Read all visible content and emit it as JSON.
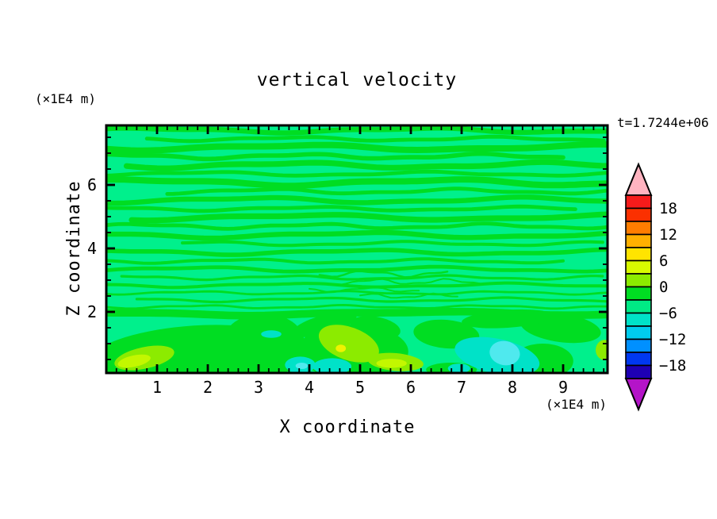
{
  "chart_data": {
    "type": "contour",
    "title": "vertical velocity",
    "time_label": "t=1.7244e+06",
    "xlabel": "X coordinate",
    "ylabel": "Z coordinate",
    "x_unit_label": "(×1E4 m)",
    "y_unit_label": "(×1E4 m)",
    "xlim": [
      0,
      9.88
    ],
    "ylim": [
      0,
      7.88
    ],
    "x_major_ticks": [
      1,
      2,
      3,
      4,
      5,
      6,
      7,
      8,
      9
    ],
    "x_minor_step": 0.2,
    "y_major_ticks": [
      2,
      4,
      6
    ],
    "y_minor_step": 0.5,
    "grid": false,
    "legend_position": "right-colorbar",
    "colorbar": {
      "labels": [
        "18",
        "12",
        "6",
        "0",
        "−6",
        "−12",
        "−18"
      ],
      "label_values": [
        18,
        12,
        6,
        0,
        -6,
        -12,
        -18
      ],
      "range": [
        -21,
        21
      ],
      "segment_step": 3,
      "colors_top_to_bottom": [
        "#f51b1b",
        "#fb3000",
        "#ff7d00",
        "#ffb000",
        "#ffe400",
        "#d8fa00",
        "#8ceb00",
        "#00dd22",
        "#00ea85",
        "#00e2c8",
        "#00ccee",
        "#0090ff",
        "#0038f0",
        "#1e00b4"
      ],
      "over_color": "#ffb3c0",
      "under_color": "#b414c8"
    },
    "field": {
      "background_color": "#00f08c",
      "band_color": "#00dd22",
      "palette": {
        "green": "#00dd22",
        "chartreuse": "#8ceb00",
        "yellow_green": "#c3f700",
        "yellow": "#f0f200",
        "turquoise": "#00e2c8",
        "cyan": "#4fe9ee"
      },
      "bands": [
        [
          7.72,
          0.16,
          0.06,
          5.2,
          0.5,
          0,
          9.88
        ],
        [
          7.45,
          0.12,
          0.05,
          4.0,
          2.1,
          0.8,
          9.88
        ],
        [
          7.18,
          0.2,
          0.07,
          6.0,
          4.0,
          0,
          9.88
        ],
        [
          6.9,
          0.14,
          0.06,
          3.6,
          1.2,
          0,
          9.1
        ],
        [
          6.62,
          0.18,
          0.07,
          5.0,
          3.3,
          0.4,
          9.88
        ],
        [
          6.35,
          0.12,
          0.05,
          4.4,
          5.1,
          0,
          9.88
        ],
        [
          6.08,
          0.2,
          0.08,
          5.8,
          0.8,
          0,
          9.88
        ],
        [
          5.8,
          0.12,
          0.06,
          3.8,
          2.7,
          1.2,
          9.88
        ],
        [
          5.52,
          0.16,
          0.07,
          5.4,
          4.6,
          0,
          9.88
        ],
        [
          5.25,
          0.12,
          0.05,
          4.2,
          1.9,
          0,
          9.3
        ],
        [
          4.98,
          0.18,
          0.07,
          6.2,
          3.9,
          0.5,
          9.88
        ],
        [
          4.7,
          0.12,
          0.06,
          3.4,
          0.3,
          0,
          9.88
        ],
        [
          4.42,
          0.16,
          0.07,
          5.6,
          2.4,
          0,
          9.88
        ],
        [
          4.15,
          0.1,
          0.05,
          4.0,
          4.9,
          1.5,
          9.88
        ],
        [
          3.88,
          0.14,
          0.06,
          5.0,
          1.6,
          0,
          9.88
        ],
        [
          3.6,
          0.1,
          0.05,
          3.6,
          3.2,
          0,
          9.0
        ],
        [
          3.34,
          0.12,
          0.06,
          4.8,
          5.6,
          0,
          9.88
        ],
        [
          3.08,
          0.08,
          0.05,
          3.2,
          0.9,
          0.3,
          9.88
        ],
        [
          2.84,
          0.1,
          0.05,
          4.4,
          2.8,
          0,
          9.88
        ],
        [
          2.6,
          0.07,
          0.04,
          3.0,
          4.2,
          0,
          9.88
        ],
        [
          2.38,
          0.08,
          0.05,
          3.8,
          1.1,
          0.6,
          9.88
        ],
        [
          2.16,
          0.07,
          0.04,
          2.8,
          3.7,
          0,
          9.88
        ],
        [
          3.2,
          0.06,
          0.08,
          1.6,
          0.2,
          4.2,
          6.8
        ],
        [
          2.95,
          0.05,
          0.07,
          1.4,
          2.9,
          4.6,
          7.4
        ],
        [
          2.7,
          0.05,
          0.06,
          1.5,
          5.0,
          4.0,
          6.2
        ],
        [
          2.5,
          0.05,
          0.06,
          1.3,
          1.7,
          5.0,
          7.0
        ],
        [
          1.95,
          0.24,
          0.05,
          7.0,
          2.2,
          0,
          9.88
        ]
      ],
      "blobs": [
        {
          "x": 1.6,
          "z": 0.75,
          "rx": 1.9,
          "rz": 0.8,
          "rot": -5,
          "c": "green"
        },
        {
          "x": 3.1,
          "z": 1.05,
          "rx": 0.8,
          "rz": 0.9,
          "rot": 0,
          "c": "green"
        },
        {
          "x": 2.7,
          "z": 0.2,
          "rx": 0.9,
          "rz": 0.3,
          "rot": 0,
          "c": "green"
        },
        {
          "x": 4.85,
          "z": 0.75,
          "rx": 1.1,
          "rz": 0.85,
          "rot": 0,
          "c": "green"
        },
        {
          "x": 4.3,
          "z": 1.6,
          "rx": 0.65,
          "rz": 0.3,
          "rot": -15,
          "c": "green"
        },
        {
          "x": 5.3,
          "z": 1.5,
          "rx": 0.5,
          "rz": 0.35,
          "rot": 10,
          "c": "green"
        },
        {
          "x": 6.7,
          "z": 1.3,
          "rx": 0.65,
          "rz": 0.45,
          "rot": 5,
          "c": "green"
        },
        {
          "x": 6.8,
          "z": 0.18,
          "rx": 0.5,
          "rz": 0.22,
          "rot": 0,
          "c": "green"
        },
        {
          "x": 8.6,
          "z": 0.45,
          "rx": 0.6,
          "rz": 0.55,
          "rot": 0,
          "c": "green"
        },
        {
          "x": 8.95,
          "z": 1.5,
          "rx": 0.8,
          "rz": 0.45,
          "rot": 8,
          "c": "green"
        },
        {
          "x": 7.9,
          "z": 1.78,
          "rx": 0.9,
          "rz": 0.28,
          "rot": -4,
          "c": "green"
        },
        {
          "x": 0.75,
          "z": 0.55,
          "rx": 0.6,
          "rz": 0.34,
          "rot": -12,
          "c": "chartreuse"
        },
        {
          "x": 4.78,
          "z": 1.0,
          "rx": 0.62,
          "rz": 0.52,
          "rot": 20,
          "c": "chartreuse"
        },
        {
          "x": 5.7,
          "z": 0.42,
          "rx": 0.55,
          "rz": 0.28,
          "rot": 5,
          "c": "chartreuse"
        },
        {
          "x": 9.82,
          "z": 0.8,
          "rx": 0.18,
          "rz": 0.32,
          "rot": 0,
          "c": "chartreuse"
        },
        {
          "x": 0.55,
          "z": 0.45,
          "rx": 0.33,
          "rz": 0.18,
          "rot": -12,
          "c": "yellow_green"
        },
        {
          "x": 5.62,
          "z": 0.38,
          "rx": 0.3,
          "rz": 0.14,
          "rot": 0,
          "c": "yellow_green"
        },
        {
          "x": 4.62,
          "z": 0.85,
          "rx": 0.1,
          "rz": 0.12,
          "rot": 0,
          "c": "yellow"
        },
        {
          "x": 3.82,
          "z": 0.33,
          "rx": 0.3,
          "rz": 0.26,
          "rot": 0,
          "c": "turquoise"
        },
        {
          "x": 4.45,
          "z": 0.28,
          "rx": 0.38,
          "rz": 0.26,
          "rot": 0,
          "c": "turquoise"
        },
        {
          "x": 7.7,
          "z": 0.6,
          "rx": 0.85,
          "rz": 0.55,
          "rot": 12,
          "c": "turquoise"
        },
        {
          "x": 3.25,
          "z": 1.3,
          "rx": 0.2,
          "rz": 0.12,
          "rot": 0,
          "c": "turquoise"
        },
        {
          "x": 6.95,
          "z": 0.22,
          "rx": 0.22,
          "rz": 0.15,
          "rot": 0,
          "c": "turquoise"
        },
        {
          "x": 7.85,
          "z": 0.7,
          "rx": 0.3,
          "rz": 0.38,
          "rot": 10,
          "c": "cyan"
        },
        {
          "x": 3.85,
          "z": 0.3,
          "rx": 0.12,
          "rz": 0.1,
          "rot": 0,
          "c": "cyan"
        }
      ]
    }
  }
}
